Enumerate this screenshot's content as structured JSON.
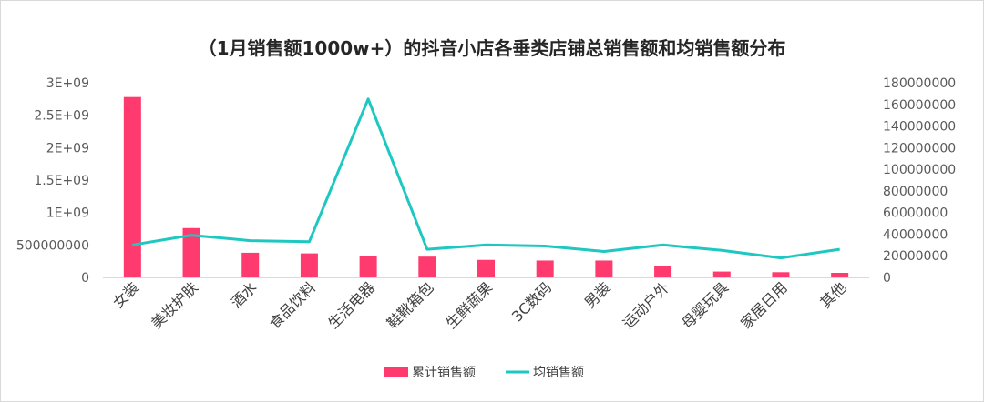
{
  "chart_data": {
    "type": "bar",
    "title": "（1月销售额1000w+）的抖音小店各垂类店铺总销售额和均销售额分布",
    "categories": [
      "女装",
      "美妆护肤",
      "酒水",
      "食品饮料",
      "生活电器",
      "鞋靴箱包",
      "生鲜蔬果",
      "3C数码",
      "男装",
      "运动户外",
      "母婴玩具",
      "家居日用",
      "其他"
    ],
    "series": [
      {
        "name": "累计销售额",
        "type": "bar",
        "axis": "left",
        "color": "#ff3a6e",
        "values": [
          2780000000,
          760000000,
          380000000,
          370000000,
          330000000,
          320000000,
          270000000,
          260000000,
          260000000,
          180000000,
          90000000,
          80000000,
          70000000
        ]
      },
      {
        "name": "均销售额",
        "type": "line",
        "axis": "right",
        "color": "#1ec8c0",
        "values": [
          30000000,
          39000000,
          34000000,
          33000000,
          165000000,
          26000000,
          30000000,
          29000000,
          24000000,
          30000000,
          25000000,
          18000000,
          26000000
        ]
      }
    ],
    "y_left": {
      "ylim": [
        0,
        3000000000
      ],
      "ticks": [
        0,
        500000000,
        1000000000,
        1500000000,
        2000000000,
        2500000000,
        3000000000
      ],
      "tick_labels": [
        "0",
        "500000000",
        "1E+09",
        "1.5E+09",
        "2E+09",
        "2.5E+09",
        "3E+09"
      ]
    },
    "y_right": {
      "ylim": [
        0,
        180000000
      ],
      "ticks": [
        0,
        20000000,
        40000000,
        60000000,
        80000000,
        100000000,
        120000000,
        140000000,
        160000000,
        180000000
      ],
      "tick_labels": [
        "0",
        "20000000",
        "40000000",
        "60000000",
        "80000000",
        "100000000",
        "120000000",
        "140000000",
        "160000000",
        "180000000"
      ]
    },
    "legend": {
      "position": "bottom",
      "items": [
        "累计销售额",
        "均销售额"
      ]
    },
    "grid": false
  }
}
